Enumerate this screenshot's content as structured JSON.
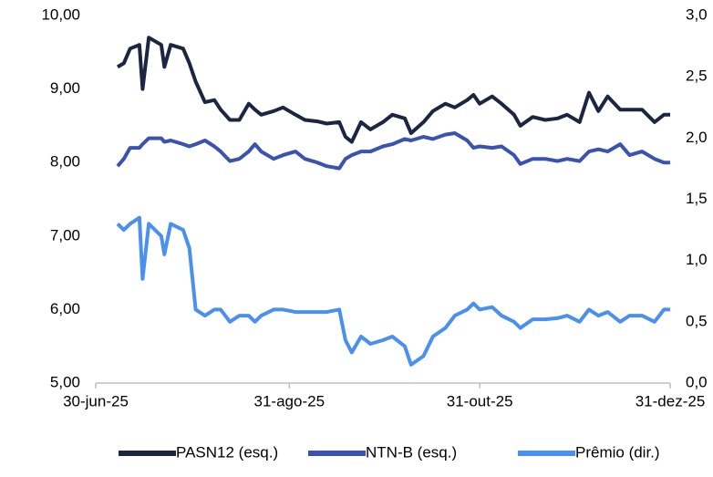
{
  "chart_data": {
    "type": "line",
    "x": [
      "2025-07-07",
      "2025-07-09",
      "2025-07-11",
      "2025-07-14",
      "2025-07-15",
      "2025-07-17",
      "2025-07-21",
      "2025-07-22",
      "2025-07-24",
      "2025-07-28",
      "2025-07-30",
      "2025-08-01",
      "2025-08-04",
      "2025-08-07",
      "2025-08-09",
      "2025-08-12",
      "2025-08-15",
      "2025-08-18",
      "2025-08-20",
      "2025-08-22",
      "2025-08-26",
      "2025-08-29",
      "2025-09-02",
      "2025-09-05",
      "2025-09-09",
      "2025-09-12",
      "2025-09-16",
      "2025-09-18",
      "2025-09-20",
      "2025-09-23",
      "2025-09-26",
      "2025-09-30",
      "2025-10-03",
      "2025-10-07",
      "2025-10-09",
      "2025-10-13",
      "2025-10-16",
      "2025-10-20",
      "2025-10-23",
      "2025-10-27",
      "2025-10-29",
      "2025-10-31",
      "2025-11-04",
      "2025-11-07",
      "2025-11-11",
      "2025-11-13",
      "2025-11-17",
      "2025-11-21",
      "2025-11-25",
      "2025-11-28",
      "2025-12-02",
      "2025-12-05",
      "2025-12-08",
      "2025-12-11",
      "2025-12-15",
      "2025-12-18",
      "2025-12-22",
      "2025-12-26",
      "2025-12-29",
      "2025-12-31"
    ],
    "series": [
      {
        "name": "PASN12 (esq.)",
        "color": "#1c2541",
        "values": [
          9.3,
          9.35,
          9.55,
          9.6,
          9.0,
          9.7,
          9.6,
          9.3,
          9.6,
          9.55,
          9.35,
          9.1,
          8.82,
          8.85,
          8.72,
          8.58,
          8.58,
          8.8,
          8.72,
          8.65,
          8.7,
          8.75,
          8.65,
          8.58,
          8.56,
          8.53,
          8.55,
          8.35,
          8.28,
          8.55,
          8.45,
          8.55,
          8.65,
          8.6,
          8.4,
          8.55,
          8.7,
          8.8,
          8.75,
          8.85,
          8.92,
          8.8,
          8.9,
          8.8,
          8.65,
          8.5,
          8.62,
          8.58,
          8.6,
          8.65,
          8.55,
          8.95,
          8.7,
          8.9,
          8.72,
          8.72,
          8.72,
          8.55,
          8.65,
          8.65
        ]
      },
      {
        "name": "NTN-B (esq.)",
        "color": "#3a53b0",
        "values": [
          7.95,
          8.05,
          8.2,
          8.2,
          8.25,
          8.33,
          8.33,
          8.28,
          8.3,
          8.25,
          8.22,
          8.25,
          8.3,
          8.22,
          8.15,
          8.02,
          8.05,
          8.15,
          8.25,
          8.15,
          8.05,
          8.1,
          8.15,
          8.05,
          8.0,
          7.95,
          7.92,
          8.05,
          8.1,
          8.15,
          8.15,
          8.22,
          8.25,
          8.32,
          8.3,
          8.35,
          8.32,
          8.38,
          8.4,
          8.3,
          8.2,
          8.22,
          8.2,
          8.22,
          8.1,
          7.98,
          8.05,
          8.05,
          8.02,
          8.05,
          8.02,
          8.15,
          8.18,
          8.15,
          8.25,
          8.1,
          8.15,
          8.05,
          8.0,
          8.0
        ]
      },
      {
        "name": "Prêmio (dir.)",
        "color": "#4a90f0",
        "axis": "y2",
        "values": [
          1.3,
          1.25,
          1.3,
          1.35,
          0.85,
          1.3,
          1.2,
          1.05,
          1.3,
          1.25,
          1.1,
          0.6,
          0.55,
          0.6,
          0.6,
          0.5,
          0.55,
          0.55,
          0.5,
          0.55,
          0.6,
          0.6,
          0.58,
          0.58,
          0.58,
          0.58,
          0.6,
          0.35,
          0.25,
          0.38,
          0.32,
          0.35,
          0.38,
          0.3,
          0.15,
          0.22,
          0.38,
          0.45,
          0.55,
          0.6,
          0.65,
          0.6,
          0.62,
          0.55,
          0.5,
          0.45,
          0.52,
          0.52,
          0.53,
          0.55,
          0.5,
          0.6,
          0.55,
          0.58,
          0.5,
          0.55,
          0.55,
          0.5,
          0.6,
          0.6
        ]
      }
    ],
    "xlim": [
      "2025-06-30",
      "2025-12-31"
    ],
    "xticks": [
      {
        "value": "2025-06-30",
        "label": "30-jun-25"
      },
      {
        "value": "2025-08-31",
        "label": "31-ago-25"
      },
      {
        "value": "2025-10-31",
        "label": "31-out-25"
      },
      {
        "value": "2025-12-31",
        "label": "31-dez-25"
      }
    ],
    "ylim": [
      5,
      10
    ],
    "yticks": [
      {
        "value": 5,
        "label": "5,00"
      },
      {
        "value": 6,
        "label": "6,00"
      },
      {
        "value": 7,
        "label": "7,00"
      },
      {
        "value": 8,
        "label": "8,00"
      },
      {
        "value": 9,
        "label": "9,00"
      },
      {
        "value": 10,
        "label": "10,00"
      }
    ],
    "y2lim": [
      0,
      3
    ],
    "y2ticks": [
      {
        "value": 0,
        "label": "0,0"
      },
      {
        "value": 0.5,
        "label": "0,5"
      },
      {
        "value": 1,
        "label": "1,0"
      },
      {
        "value": 1.5,
        "label": "1,5"
      },
      {
        "value": 2,
        "label": "2,0"
      },
      {
        "value": 2.5,
        "label": "2,5"
      },
      {
        "value": 3,
        "label": "3,0"
      }
    ],
    "legend": "bottom"
  }
}
